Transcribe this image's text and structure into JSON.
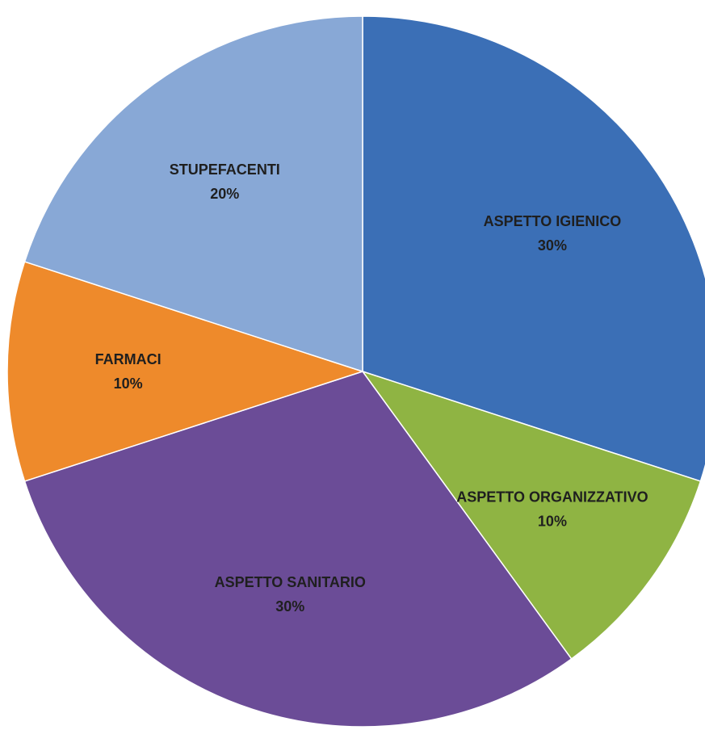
{
  "chart_data": {
    "type": "pie",
    "categories": [
      "ASPETTO IGIENICO",
      "ASPETTO ORGANIZZATIVO",
      "ASPETTO SANITARIO",
      "FARMACI",
      "STUPEFACENTI"
    ],
    "values": [
      30,
      10,
      30,
      10,
      20
    ],
    "value_labels": [
      "30%",
      "10%",
      "30%",
      "10%",
      "20%"
    ],
    "colors": [
      "#3b6fb6",
      "#8fb443",
      "#6b4c97",
      "#ee8a2b",
      "#88a8d6"
    ]
  }
}
